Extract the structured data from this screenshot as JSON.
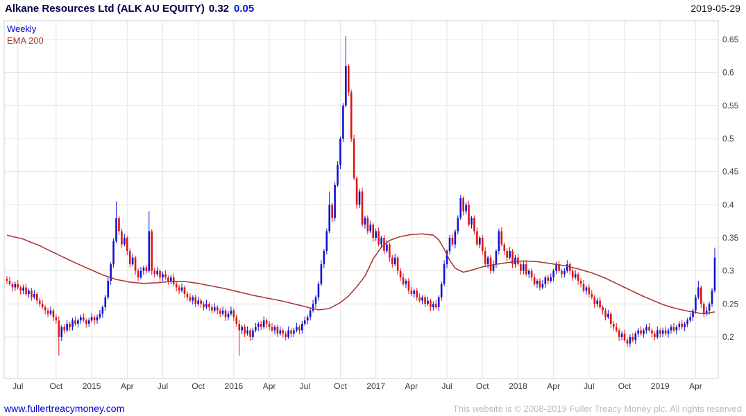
{
  "header": {
    "name": "Alkane Resources Ltd (ALK AU EQUITY)",
    "price": "0.32",
    "change": "0.05",
    "date": "2019-05-29"
  },
  "legend": {
    "timeframe": "Weekly",
    "indicator": "EMA 200"
  },
  "footer": {
    "link": "www.fullertreacymoney.com",
    "copyright": "This website is © 2008-2019 Fuller Treacy Money plc. All rights reserved"
  },
  "chart_data": {
    "type": "candlestick",
    "title": "Alkane Resources Ltd (ALK AU EQUITY)",
    "timeframe": "Weekly",
    "overlay": "EMA 200",
    "last_price": 0.32,
    "change": 0.05,
    "grid": true,
    "y_axis_side": "right",
    "y_ticks": [
      {
        "value": 0.65,
        "label": "0.65"
      },
      {
        "value": 0.6,
        "label": "0.6"
      },
      {
        "value": 0.55,
        "label": "0.55"
      },
      {
        "value": 0.5,
        "label": "0.5"
      },
      {
        "value": 0.45,
        "label": "0.45"
      },
      {
        "value": 0.4,
        "label": "0.4"
      },
      {
        "value": 0.35,
        "label": "0.35"
      },
      {
        "value": 0.3,
        "label": "0.3"
      },
      {
        "value": 0.25,
        "label": "0.25"
      },
      {
        "value": 0.2,
        "label": "0.2"
      }
    ],
    "y_visible_range": [
      0.14,
      0.67
    ],
    "x_ticks": [
      {
        "week": 4,
        "label": "Jul"
      },
      {
        "week": 18,
        "label": "Oct"
      },
      {
        "week": 31,
        "label": "2015"
      },
      {
        "week": 44,
        "label": "Apr"
      },
      {
        "week": 57,
        "label": "Jul"
      },
      {
        "week": 70,
        "label": "Oct"
      },
      {
        "week": 83,
        "label": "2016"
      },
      {
        "week": 96,
        "label": "Apr"
      },
      {
        "week": 109,
        "label": "Jul"
      },
      {
        "week": 122,
        "label": "Oct"
      },
      {
        "week": 135,
        "label": "2017"
      },
      {
        "week": 148,
        "label": "Apr"
      },
      {
        "week": 161,
        "label": "Jul"
      },
      {
        "week": 174,
        "label": "Oct"
      },
      {
        "week": 187,
        "label": "2018"
      },
      {
        "week": 200,
        "label": "Apr"
      },
      {
        "week": 213,
        "label": "Jul"
      },
      {
        "week": 226,
        "label": "Oct"
      },
      {
        "week": 239,
        "label": "2019"
      },
      {
        "week": 252,
        "label": "Apr"
      }
    ],
    "weekly_closes": [
      0.285,
      0.28,
      0.275,
      0.28,
      0.275,
      0.27,
      0.275,
      0.265,
      0.27,
      0.26,
      0.265,
      0.255,
      0.25,
      0.245,
      0.24,
      0.235,
      0.24,
      0.23,
      0.225,
      0.2,
      0.215,
      0.21,
      0.22,
      0.215,
      0.225,
      0.22,
      0.225,
      0.23,
      0.225,
      0.22,
      0.225,
      0.23,
      0.225,
      0.23,
      0.235,
      0.245,
      0.26,
      0.285,
      0.31,
      0.345,
      0.38,
      0.36,
      0.34,
      0.35,
      0.33,
      0.31,
      0.32,
      0.3,
      0.29,
      0.3,
      0.305,
      0.3,
      0.36,
      0.3,
      0.295,
      0.3,
      0.29,
      0.295,
      0.29,
      0.285,
      0.29,
      0.28,
      0.275,
      0.27,
      0.275,
      0.265,
      0.26,
      0.255,
      0.26,
      0.25,
      0.255,
      0.25,
      0.245,
      0.25,
      0.245,
      0.24,
      0.245,
      0.24,
      0.235,
      0.24,
      0.23,
      0.235,
      0.24,
      0.23,
      0.22,
      0.21,
      0.215,
      0.205,
      0.21,
      0.2,
      0.21,
      0.215,
      0.22,
      0.215,
      0.225,
      0.22,
      0.215,
      0.21,
      0.215,
      0.205,
      0.21,
      0.205,
      0.2,
      0.21,
      0.205,
      0.21,
      0.215,
      0.21,
      0.22,
      0.225,
      0.23,
      0.24,
      0.25,
      0.26,
      0.28,
      0.31,
      0.33,
      0.36,
      0.4,
      0.38,
      0.43,
      0.46,
      0.5,
      0.55,
      0.61,
      0.57,
      0.5,
      0.44,
      0.4,
      0.42,
      0.37,
      0.38,
      0.36,
      0.37,
      0.35,
      0.36,
      0.34,
      0.35,
      0.33,
      0.34,
      0.32,
      0.31,
      0.32,
      0.3,
      0.29,
      0.28,
      0.285,
      0.27,
      0.265,
      0.27,
      0.26,
      0.255,
      0.26,
      0.25,
      0.255,
      0.245,
      0.25,
      0.245,
      0.26,
      0.28,
      0.31,
      0.33,
      0.35,
      0.34,
      0.36,
      0.38,
      0.41,
      0.39,
      0.4,
      0.37,
      0.38,
      0.36,
      0.34,
      0.35,
      0.33,
      0.31,
      0.32,
      0.3,
      0.31,
      0.33,
      0.36,
      0.34,
      0.33,
      0.32,
      0.33,
      0.31,
      0.32,
      0.31,
      0.3,
      0.31,
      0.295,
      0.3,
      0.29,
      0.28,
      0.285,
      0.275,
      0.28,
      0.29,
      0.285,
      0.29,
      0.3,
      0.31,
      0.3,
      0.295,
      0.3,
      0.31,
      0.3,
      0.29,
      0.295,
      0.285,
      0.28,
      0.27,
      0.275,
      0.265,
      0.26,
      0.25,
      0.255,
      0.245,
      0.24,
      0.23,
      0.235,
      0.22,
      0.215,
      0.21,
      0.2,
      0.205,
      0.195,
      0.19,
      0.2,
      0.195,
      0.205,
      0.21,
      0.205,
      0.21,
      0.215,
      0.21,
      0.205,
      0.2,
      0.21,
      0.205,
      0.21,
      0.205,
      0.21,
      0.215,
      0.21,
      0.215,
      0.22,
      0.215,
      0.22,
      0.225,
      0.23,
      0.24,
      0.26,
      0.275,
      0.25,
      0.235,
      0.24,
      0.25,
      0.27,
      0.32
    ],
    "wick_overrides": {
      "19": {
        "low": 0.172
      },
      "40": {
        "high": 0.405
      },
      "52": {
        "high": 0.39
      },
      "85": {
        "low": 0.172
      },
      "118": {
        "high": 0.42
      },
      "124": {
        "high": 0.655
      },
      "166": {
        "high": 0.415
      },
      "227": {
        "low": 0.185
      },
      "253": {
        "high": 0.285
      },
      "259": {
        "high": 0.335
      }
    },
    "ema_200_anchors": [
      [
        0,
        0.354
      ],
      [
        6,
        0.348
      ],
      [
        12,
        0.338
      ],
      [
        18,
        0.326
      ],
      [
        24,
        0.314
      ],
      [
        30,
        0.303
      ],
      [
        35,
        0.294
      ],
      [
        40,
        0.287
      ],
      [
        45,
        0.283
      ],
      [
        50,
        0.281
      ],
      [
        55,
        0.282
      ],
      [
        60,
        0.284
      ],
      [
        65,
        0.284
      ],
      [
        70,
        0.281
      ],
      [
        75,
        0.277
      ],
      [
        80,
        0.273
      ],
      [
        85,
        0.268
      ],
      [
        90,
        0.263
      ],
      [
        95,
        0.259
      ],
      [
        100,
        0.255
      ],
      [
        105,
        0.25
      ],
      [
        110,
        0.245
      ],
      [
        114,
        0.241
      ],
      [
        118,
        0.243
      ],
      [
        122,
        0.252
      ],
      [
        125,
        0.262
      ],
      [
        128,
        0.276
      ],
      [
        131,
        0.292
      ],
      [
        134,
        0.318
      ],
      [
        137,
        0.336
      ],
      [
        140,
        0.346
      ],
      [
        144,
        0.352
      ],
      [
        148,
        0.355
      ],
      [
        152,
        0.356
      ],
      [
        156,
        0.354
      ],
      [
        158,
        0.347
      ],
      [
        160,
        0.333
      ],
      [
        162,
        0.316
      ],
      [
        164,
        0.304
      ],
      [
        167,
        0.298
      ],
      [
        170,
        0.301
      ],
      [
        174,
        0.306
      ],
      [
        179,
        0.31
      ],
      [
        184,
        0.313
      ],
      [
        189,
        0.315
      ],
      [
        194,
        0.314
      ],
      [
        199,
        0.311
      ],
      [
        204,
        0.308
      ],
      [
        209,
        0.303
      ],
      [
        214,
        0.297
      ],
      [
        219,
        0.289
      ],
      [
        224,
        0.279
      ],
      [
        228,
        0.271
      ],
      [
        232,
        0.263
      ],
      [
        236,
        0.256
      ],
      [
        240,
        0.249
      ],
      [
        244,
        0.244
      ],
      [
        248,
        0.24
      ],
      [
        252,
        0.237
      ],
      [
        255,
        0.235
      ],
      [
        259,
        0.238
      ]
    ],
    "colors": {
      "up": "#1212d0",
      "down": "#e01414",
      "ema": "#aa3939",
      "grid": "#e4e4e4",
      "border": "#cfcfcf",
      "axis_text": "#3a3a3a"
    }
  }
}
